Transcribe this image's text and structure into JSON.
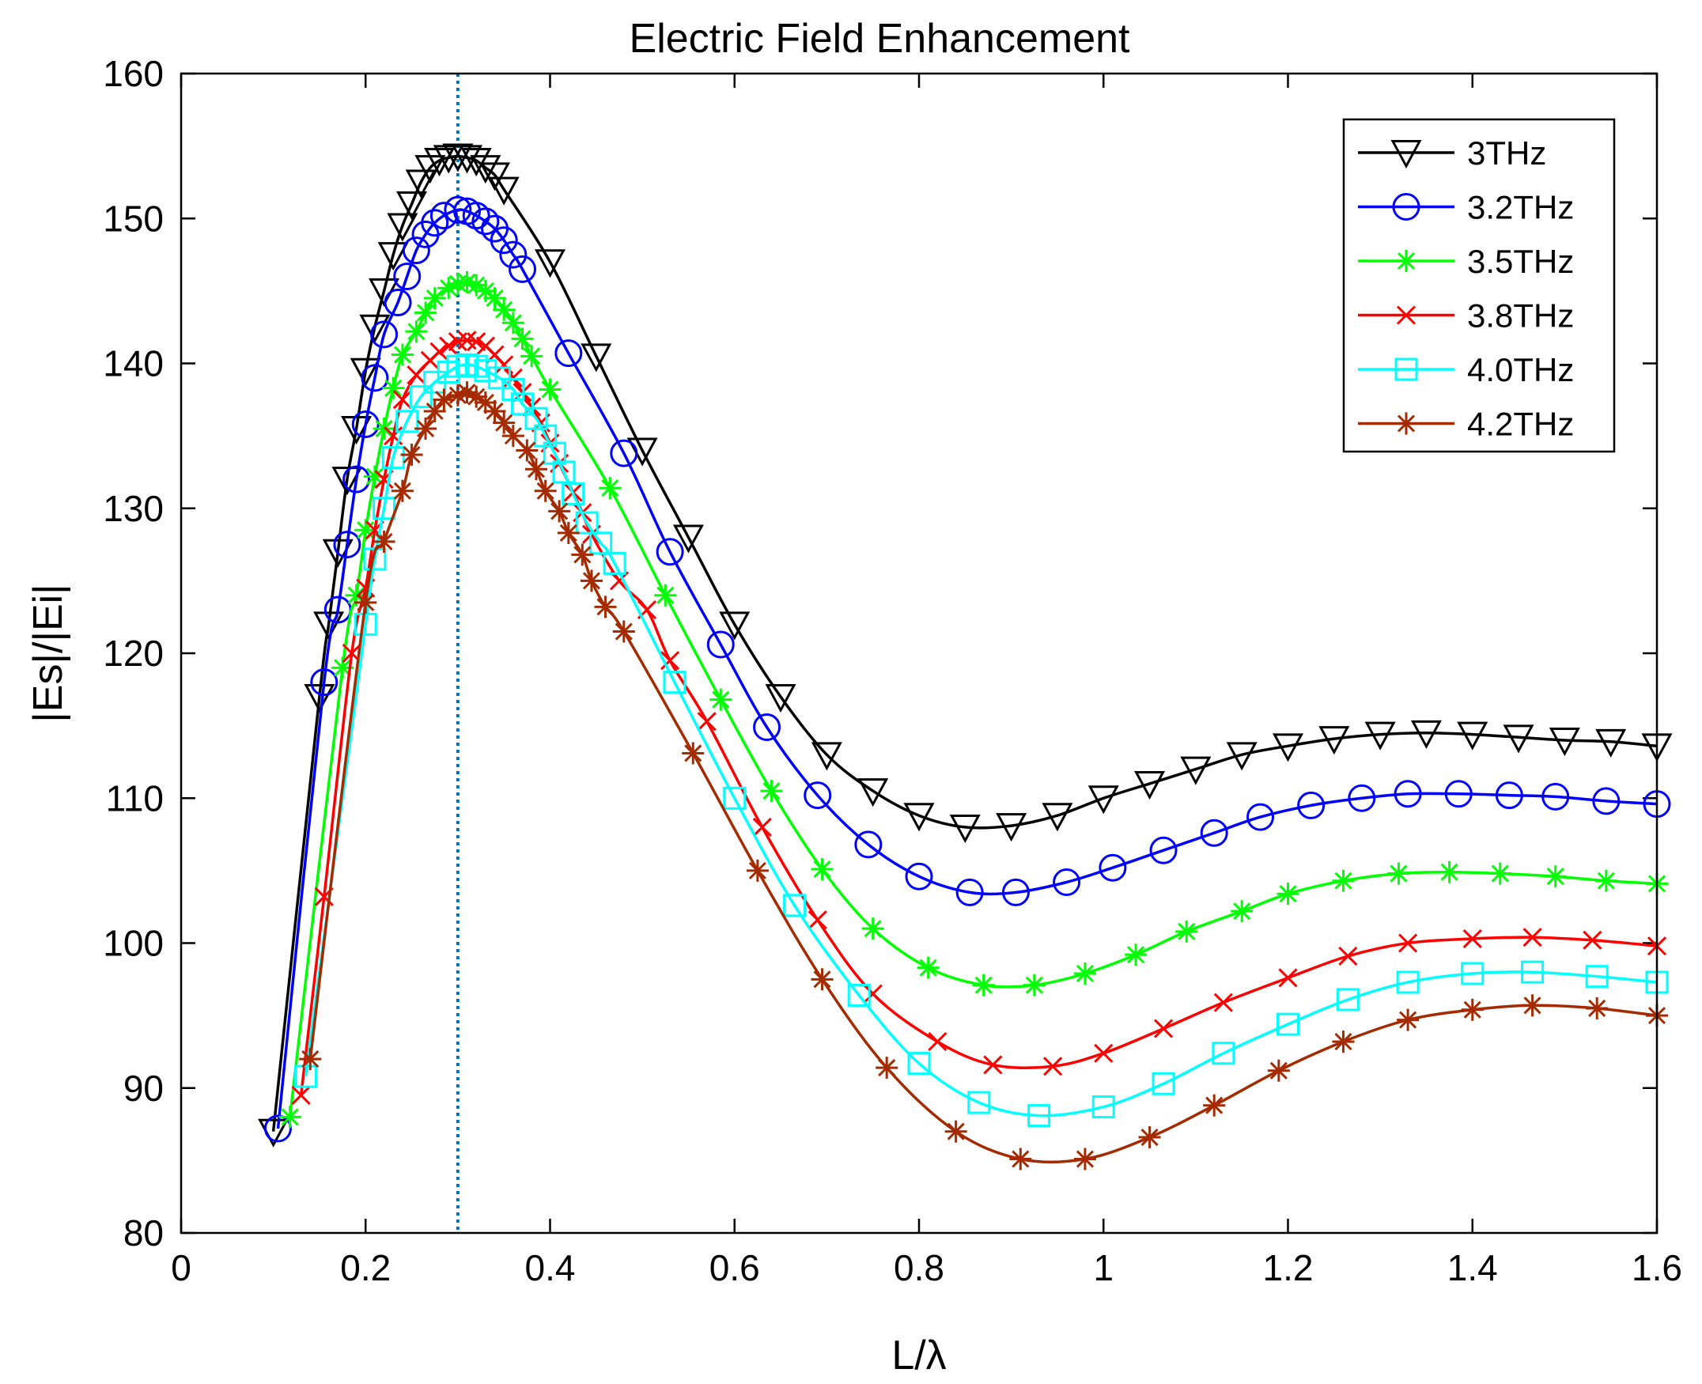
{
  "chart_data": {
    "type": "line",
    "title": "Electric Field Enhancement",
    "xlabel": "L/λ",
    "ylabel": "|Es|/|Ei|",
    "xlim": [
      0,
      1.6
    ],
    "ylim": [
      80,
      160
    ],
    "xticks": [
      "0",
      "0.2",
      "0.4",
      "0.6",
      "0.8",
      "1",
      "1.2",
      "1.4",
      "1.6"
    ],
    "yticks": [
      "80",
      "90",
      "100",
      "110",
      "120",
      "130",
      "140",
      "150",
      "160"
    ],
    "grid": false,
    "legend_position": "top-right",
    "reference_line": {
      "x": 0.3,
      "style": "dotted",
      "color": "#0072BD"
    },
    "series": [
      {
        "name": "3THz",
        "color": "#000000",
        "marker": "triangle-down",
        "points": [
          [
            0.1,
            87
          ],
          [
            0.15,
            117
          ],
          [
            0.16,
            122
          ],
          [
            0.17,
            127
          ],
          [
            0.18,
            132
          ],
          [
            0.19,
            135.5
          ],
          [
            0.2,
            139.5
          ],
          [
            0.21,
            142.5
          ],
          [
            0.22,
            145
          ],
          [
            0.23,
            147.5
          ],
          [
            0.24,
            149.5
          ],
          [
            0.25,
            151
          ],
          [
            0.26,
            152.5
          ],
          [
            0.27,
            153.5
          ],
          [
            0.28,
            154
          ],
          [
            0.29,
            154.2
          ],
          [
            0.3,
            154.3
          ],
          [
            0.31,
            154.2
          ],
          [
            0.32,
            154
          ],
          [
            0.33,
            153.5
          ],
          [
            0.34,
            153
          ],
          [
            0.35,
            152
          ],
          [
            0.4,
            147
          ],
          [
            0.45,
            140.5
          ],
          [
            0.5,
            134
          ],
          [
            0.55,
            128
          ],
          [
            0.6,
            122
          ],
          [
            0.65,
            117
          ],
          [
            0.7,
            113
          ],
          [
            0.75,
            110.5
          ],
          [
            0.8,
            108.8
          ],
          [
            0.85,
            108
          ],
          [
            0.9,
            108.1
          ],
          [
            0.95,
            108.8
          ],
          [
            1.0,
            110
          ],
          [
            1.05,
            111
          ],
          [
            1.1,
            112
          ],
          [
            1.15,
            113
          ],
          [
            1.2,
            113.6
          ],
          [
            1.25,
            114.1
          ],
          [
            1.3,
            114.4
          ],
          [
            1.35,
            114.5
          ],
          [
            1.4,
            114.4
          ],
          [
            1.45,
            114.2
          ],
          [
            1.5,
            114
          ],
          [
            1.55,
            113.9
          ],
          [
            1.6,
            113.6
          ]
        ]
      },
      {
        "name": "3.2THz",
        "color": "#0000FF",
        "marker": "circle",
        "points": [
          [
            0.105,
            87.2
          ],
          [
            0.155,
            118
          ],
          [
            0.17,
            123
          ],
          [
            0.18,
            127.5
          ],
          [
            0.19,
            132
          ],
          [
            0.2,
            135.8
          ],
          [
            0.21,
            139
          ],
          [
            0.22,
            142
          ],
          [
            0.235,
            144.2
          ],
          [
            0.245,
            146
          ],
          [
            0.255,
            147.8
          ],
          [
            0.265,
            148.9
          ],
          [
            0.275,
            149.7
          ],
          [
            0.285,
            150.2
          ],
          [
            0.3,
            150.6
          ],
          [
            0.31,
            150.5
          ],
          [
            0.32,
            150.2
          ],
          [
            0.33,
            149.8
          ],
          [
            0.34,
            149.3
          ],
          [
            0.35,
            148.5
          ],
          [
            0.36,
            147.5
          ],
          [
            0.37,
            146.5
          ],
          [
            0.42,
            140.7
          ],
          [
            0.48,
            133.8
          ],
          [
            0.53,
            127
          ],
          [
            0.585,
            120.6
          ],
          [
            0.635,
            114.9
          ],
          [
            0.69,
            110.2
          ],
          [
            0.745,
            106.8
          ],
          [
            0.8,
            104.6
          ],
          [
            0.855,
            103.5
          ],
          [
            0.905,
            103.5
          ],
          [
            0.96,
            104.2
          ],
          [
            1.01,
            105.2
          ],
          [
            1.065,
            106.4
          ],
          [
            1.12,
            107.6
          ],
          [
            1.17,
            108.7
          ],
          [
            1.225,
            109.5
          ],
          [
            1.28,
            110
          ],
          [
            1.33,
            110.3
          ],
          [
            1.385,
            110.3
          ],
          [
            1.44,
            110.2
          ],
          [
            1.49,
            110.1
          ],
          [
            1.545,
            109.8
          ],
          [
            1.6,
            109.6
          ]
        ]
      },
      {
        "name": "3.5THz",
        "color": "#00FF00",
        "marker": "asterisk",
        "points": [
          [
            0.118,
            88
          ],
          [
            0.175,
            119
          ],
          [
            0.19,
            124
          ],
          [
            0.2,
            128.5
          ],
          [
            0.21,
            132.2
          ],
          [
            0.22,
            135.5
          ],
          [
            0.23,
            138.3
          ],
          [
            0.24,
            140.6
          ],
          [
            0.255,
            142.2
          ],
          [
            0.265,
            143.5
          ],
          [
            0.275,
            144.5
          ],
          [
            0.29,
            145.2
          ],
          [
            0.3,
            145.5
          ],
          [
            0.31,
            145.6
          ],
          [
            0.32,
            145.4
          ],
          [
            0.33,
            145
          ],
          [
            0.34,
            144.5
          ],
          [
            0.35,
            143.7
          ],
          [
            0.36,
            142.8
          ],
          [
            0.37,
            141.7
          ],
          [
            0.38,
            140.5
          ],
          [
            0.4,
            138.2
          ],
          [
            0.465,
            131.4
          ],
          [
            0.525,
            124
          ],
          [
            0.585,
            116.8
          ],
          [
            0.64,
            110.5
          ],
          [
            0.695,
            105.1
          ],
          [
            0.75,
            101
          ],
          [
            0.81,
            98.3
          ],
          [
            0.87,
            97.1
          ],
          [
            0.925,
            97.1
          ],
          [
            0.98,
            97.9
          ],
          [
            1.035,
            99.2
          ],
          [
            1.09,
            100.8
          ],
          [
            1.15,
            102.2
          ],
          [
            1.2,
            103.4
          ],
          [
            1.26,
            104.3
          ],
          [
            1.32,
            104.8
          ],
          [
            1.375,
            104.9
          ],
          [
            1.43,
            104.8
          ],
          [
            1.49,
            104.6
          ],
          [
            1.545,
            104.3
          ],
          [
            1.6,
            104.1
          ]
        ]
      },
      {
        "name": "3.8THz",
        "color": "#FF0000",
        "marker": "x",
        "points": [
          [
            0.13,
            89.5
          ],
          [
            0.155,
            103.2
          ],
          [
            0.185,
            120
          ],
          [
            0.2,
            124.5
          ],
          [
            0.21,
            128.5
          ],
          [
            0.22,
            132
          ],
          [
            0.23,
            135
          ],
          [
            0.24,
            137.5
          ],
          [
            0.255,
            139.2
          ],
          [
            0.27,
            140.2
          ],
          [
            0.28,
            140.8
          ],
          [
            0.29,
            141.2
          ],
          [
            0.3,
            141.5
          ],
          [
            0.31,
            141.6
          ],
          [
            0.32,
            141.5
          ],
          [
            0.33,
            141.2
          ],
          [
            0.34,
            140.6
          ],
          [
            0.35,
            139.9
          ],
          [
            0.36,
            139
          ],
          [
            0.37,
            138
          ],
          [
            0.38,
            137
          ],
          [
            0.39,
            135.9
          ],
          [
            0.4,
            134.5
          ],
          [
            0.41,
            133.1
          ],
          [
            0.425,
            131.1
          ],
          [
            0.435,
            129.7
          ],
          [
            0.445,
            128.2
          ],
          [
            0.475,
            125
          ],
          [
            0.505,
            123
          ],
          [
            0.53,
            119.5
          ],
          [
            0.57,
            115.3
          ],
          [
            0.63,
            108
          ],
          [
            0.69,
            101.6
          ],
          [
            0.75,
            96.5
          ],
          [
            0.82,
            93.2
          ],
          [
            0.88,
            91.6
          ],
          [
            0.945,
            91.5
          ],
          [
            1.0,
            92.4
          ],
          [
            1.065,
            94.1
          ],
          [
            1.13,
            95.9
          ],
          [
            1.2,
            97.6
          ],
          [
            1.265,
            99.1
          ],
          [
            1.33,
            100
          ],
          [
            1.4,
            100.3
          ],
          [
            1.465,
            100.4
          ],
          [
            1.53,
            100.2
          ],
          [
            1.6,
            99.8
          ]
        ]
      },
      {
        "name": "4.0THz",
        "color": "#00FFFF",
        "marker": "square",
        "points": [
          [
            0.135,
            90.8
          ],
          [
            0.2,
            122
          ],
          [
            0.21,
            126.5
          ],
          [
            0.22,
            130
          ],
          [
            0.23,
            133.5
          ],
          [
            0.245,
            136
          ],
          [
            0.26,
            137.7
          ],
          [
            0.275,
            138.7
          ],
          [
            0.29,
            139.4
          ],
          [
            0.3,
            139.8
          ],
          [
            0.31,
            139.9
          ],
          [
            0.32,
            139.8
          ],
          [
            0.33,
            139.5
          ],
          [
            0.345,
            139
          ],
          [
            0.36,
            138.2
          ],
          [
            0.37,
            137.2
          ],
          [
            0.385,
            136.2
          ],
          [
            0.395,
            135
          ],
          [
            0.405,
            133.8
          ],
          [
            0.415,
            132.5
          ],
          [
            0.425,
            131
          ],
          [
            0.44,
            129
          ],
          [
            0.455,
            127.6
          ],
          [
            0.47,
            126.2
          ],
          [
            0.535,
            118
          ],
          [
            0.6,
            110
          ],
          [
            0.665,
            102.6
          ],
          [
            0.735,
            96.4
          ],
          [
            0.8,
            91.7
          ],
          [
            0.865,
            89
          ],
          [
            0.93,
            88.1
          ],
          [
            1.0,
            88.7
          ],
          [
            1.065,
            90.3
          ],
          [
            1.13,
            92.4
          ],
          [
            1.2,
            94.4
          ],
          [
            1.265,
            96.1
          ],
          [
            1.33,
            97.3
          ],
          [
            1.4,
            97.9
          ],
          [
            1.465,
            98
          ],
          [
            1.535,
            97.7
          ],
          [
            1.6,
            97.3
          ]
        ]
      },
      {
        "name": "4.2THz",
        "color": "#A52A00",
        "marker": "asterisk",
        "points": [
          [
            0.14,
            92
          ],
          [
            0.2,
            123.5
          ],
          [
            0.22,
            127.7
          ],
          [
            0.24,
            131.2
          ],
          [
            0.25,
            133.7
          ],
          [
            0.265,
            135.5
          ],
          [
            0.275,
            136.7
          ],
          [
            0.285,
            137.5
          ],
          [
            0.3,
            137.8
          ],
          [
            0.31,
            138
          ],
          [
            0.32,
            137.7
          ],
          [
            0.33,
            137.3
          ],
          [
            0.34,
            136.7
          ],
          [
            0.35,
            135.9
          ],
          [
            0.36,
            135
          ],
          [
            0.375,
            134
          ],
          [
            0.385,
            132.7
          ],
          [
            0.395,
            131.2
          ],
          [
            0.41,
            129.8
          ],
          [
            0.42,
            128.3
          ],
          [
            0.435,
            126.8
          ],
          [
            0.445,
            125
          ],
          [
            0.46,
            123.2
          ],
          [
            0.48,
            121.5
          ],
          [
            0.555,
            113.1
          ],
          [
            0.625,
            105
          ],
          [
            0.695,
            97.5
          ],
          [
            0.765,
            91.4
          ],
          [
            0.84,
            87
          ],
          [
            0.91,
            85.1
          ],
          [
            0.98,
            85.1
          ],
          [
            1.05,
            86.6
          ],
          [
            1.12,
            88.8
          ],
          [
            1.19,
            91.2
          ],
          [
            1.26,
            93.2
          ],
          [
            1.33,
            94.7
          ],
          [
            1.4,
            95.4
          ],
          [
            1.465,
            95.7
          ],
          [
            1.535,
            95.5
          ],
          [
            1.6,
            95
          ]
        ]
      }
    ]
  }
}
